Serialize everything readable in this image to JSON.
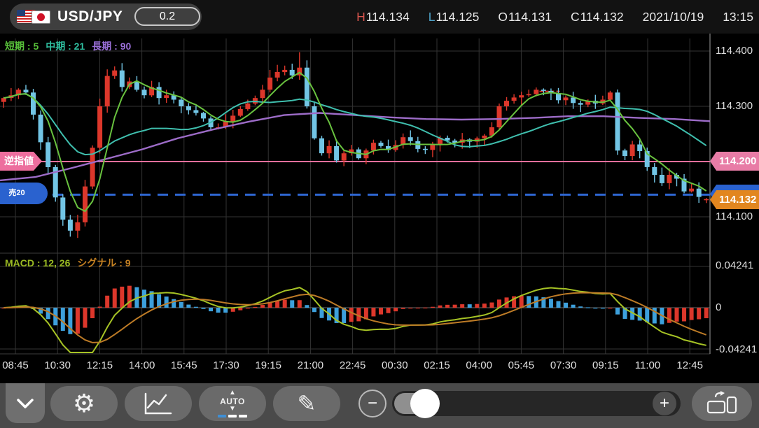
{
  "header": {
    "pair": "USD/JPY",
    "spread": "0.2",
    "ohlc": [
      {
        "label": "H",
        "value": "114.134",
        "color": "#d9554d"
      },
      {
        "label": "L",
        "value": "114.125",
        "color": "#4fa3c9"
      },
      {
        "label": "O",
        "value": "114.131",
        "color": "#e8e8e8"
      },
      {
        "label": "C",
        "value": "114.132",
        "color": "#e8e8e8"
      }
    ],
    "date": "2021/10/19",
    "time": "13:15"
  },
  "indicators": {
    "ma": [
      {
        "label": "短期 : 5",
        "color": "#58c13a"
      },
      {
        "label": "中期 : 21",
        "color": "#2fbfa0"
      },
      {
        "label": "長期 : 90",
        "color": "#9a6fd8"
      }
    ],
    "macd": [
      {
        "label": "MACD : 12, 26",
        "color": "#9aba22"
      },
      {
        "label": "シグナル : 9",
        "color": "#c58122"
      }
    ]
  },
  "left_markers": {
    "stop_label": "逆指値",
    "position_label": "売20"
  },
  "price_axis": {
    "labels": [
      "114.400",
      "114.300",
      "114.100"
    ],
    "stop_badge": "114.200",
    "current_badge": "114.132"
  },
  "macd_axis": [
    "0.04241",
    "0",
    "-0.04241"
  ],
  "toolbar": {
    "auto_label": "AUTO",
    "zoom_out_label": "−",
    "zoom_in_label": "+"
  },
  "chart_data": {
    "type": "candlestick",
    "title": "USD/JPY 15min candles with SMA(5,21,90), MACD(12,26,9)",
    "ylim": [
      114.055,
      114.42
    ],
    "price_gridlines": [
      114.4,
      114.3,
      114.2,
      114.1
    ],
    "stop_line_price": 114.2,
    "position_line_price": 114.14,
    "current_price": 114.132,
    "prev_high_marker": {
      "price": 114.327,
      "x_frac": 0.752,
      "width_frac": 0.038
    },
    "time_labels": [
      "08:45",
      "10:30",
      "12:15",
      "14:00",
      "15:45",
      "17:30",
      "19:15",
      "21:00",
      "22:45",
      "00:30",
      "02:15",
      "04:00",
      "05:45",
      "07:30",
      "09:15",
      "11:00",
      "12:45"
    ],
    "first_open": 114.308,
    "closes": [
      114.315,
      114.32,
      114.33,
      114.325,
      114.285,
      114.235,
      114.19,
      114.135,
      114.095,
      114.075,
      114.09,
      114.155,
      114.225,
      114.3,
      114.355,
      114.365,
      114.335,
      114.345,
      114.33,
      114.32,
      114.335,
      114.315,
      114.32,
      114.312,
      114.3,
      114.293,
      114.288,
      114.278,
      114.262,
      114.262,
      114.272,
      114.283,
      114.295,
      114.305,
      114.315,
      114.33,
      114.352,
      114.362,
      114.366,
      114.356,
      114.37,
      114.3,
      114.242,
      114.215,
      114.228,
      114.202,
      114.215,
      114.222,
      114.206,
      114.22,
      114.234,
      114.228,
      114.221,
      114.23,
      114.244,
      114.237,
      114.223,
      114.221,
      114.23,
      114.243,
      114.238,
      114.234,
      114.24,
      114.236,
      114.242,
      114.247,
      114.262,
      114.3,
      114.31,
      114.316,
      114.32,
      114.322,
      114.33,
      114.328,
      114.324,
      114.311,
      114.316,
      114.306,
      114.303,
      114.31,
      114.305,
      114.312,
      114.325,
      114.22,
      114.21,
      114.231,
      114.219,
      114.19,
      114.176,
      114.161,
      114.176,
      114.169,
      114.146,
      114.151,
      114.136,
      114.132
    ],
    "spike_high": {
      "index": 40,
      "price": 114.398
    },
    "spike_low": {
      "index": 9,
      "price": 114.064
    },
    "current_candle": {
      "o": 114.131,
      "h": 114.134,
      "l": 114.125,
      "c": 114.132
    },
    "ma_long_points": [
      [
        0.0,
        114.166
      ],
      [
        0.05,
        114.172
      ],
      [
        0.1,
        114.188
      ],
      [
        0.15,
        114.205
      ],
      [
        0.2,
        114.222
      ],
      [
        0.25,
        114.242
      ],
      [
        0.3,
        114.258
      ],
      [
        0.35,
        114.272
      ],
      [
        0.4,
        114.284
      ],
      [
        0.45,
        114.288
      ],
      [
        0.5,
        114.284
      ],
      [
        0.55,
        114.28
      ],
      [
        0.6,
        114.277
      ],
      [
        0.65,
        114.276
      ],
      [
        0.7,
        114.277
      ],
      [
        0.75,
        114.279
      ],
      [
        0.8,
        114.282
      ],
      [
        0.85,
        114.282
      ],
      [
        0.9,
        114.279
      ],
      [
        0.95,
        114.277
      ],
      [
        1.0,
        114.273
      ]
    ],
    "macd_params": {
      "fast": 12,
      "slow": 26,
      "signal": 9,
      "axis_max": 0.04241
    },
    "colors": {
      "up": "#dc372b",
      "down": "#72c5e5",
      "hist_up": "#dc372b",
      "hist_down": "#3da0dc",
      "ma_short": "#69c23f",
      "ma_mid": "#3fbfae",
      "ma_long": "#9d6cc8",
      "macd_line": "#a6c325",
      "signal_line": "#bd7b26",
      "stop_line": "#ee6f9d",
      "position_line": "#2e66d0",
      "grid": "#333333",
      "zero_line": "#6a6a6a",
      "axis": "#7a7a7a"
    }
  }
}
